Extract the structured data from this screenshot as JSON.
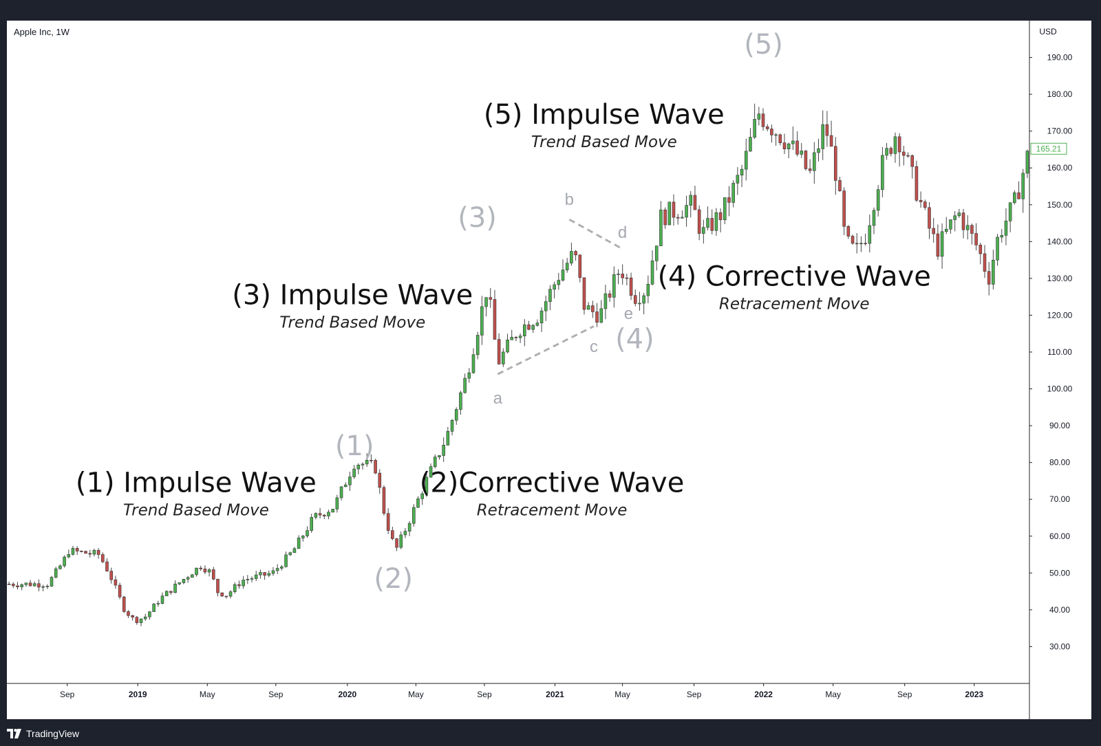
{
  "app": {
    "symbol_title": "Apple Inc, 1W",
    "brand": "TradingView"
  },
  "colors": {
    "background": "#1e222d",
    "panel": "#ffffff",
    "up": "#4caf50",
    "down": "#c0504d",
    "wick": "#444444",
    "wave_label": "#b2b5bc",
    "trendline": "#b0b0b0",
    "price_tag": "#4caf50"
  },
  "chart_data": {
    "type": "candlestick",
    "title": "Apple Inc, 1W",
    "currency": "USD",
    "ylim": [
      20,
      200
    ],
    "y_ticks": [
      30,
      40,
      50,
      60,
      70,
      80,
      90,
      100,
      110,
      120,
      130,
      140,
      150,
      160,
      170,
      180,
      190
    ],
    "y_tick_labels": [
      "30.00",
      "40.00",
      "50.00",
      "60.00",
      "70.00",
      "80.00",
      "90.00",
      "100.00",
      "110.00",
      "120.00",
      "130.00",
      "140.00",
      "150.00",
      "160.00",
      "170.00",
      "180.00",
      "190.00"
    ],
    "last_price": 165.21,
    "last_price_label": "165.21",
    "x_ticks": [
      {
        "label": "Sep",
        "t": 0.059,
        "bold": false
      },
      {
        "label": "2019",
        "t": 0.128,
        "bold": true
      },
      {
        "label": "May",
        "t": 0.196,
        "bold": false
      },
      {
        "label": "Sep",
        "t": 0.263,
        "bold": false
      },
      {
        "label": "2020",
        "t": 0.333,
        "bold": true
      },
      {
        "label": "May",
        "t": 0.4,
        "bold": false
      },
      {
        "label": "Sep",
        "t": 0.467,
        "bold": false
      },
      {
        "label": "2021",
        "t": 0.536,
        "bold": true
      },
      {
        "label": "May",
        "t": 0.602,
        "bold": false
      },
      {
        "label": "Sep",
        "t": 0.672,
        "bold": false
      },
      {
        "label": "2022",
        "t": 0.74,
        "bold": true
      },
      {
        "label": "May",
        "t": 0.808,
        "bold": false
      },
      {
        "label": "Sep",
        "t": 0.878,
        "bold": false
      },
      {
        "label": "2023",
        "t": 0.946,
        "bold": true
      }
    ],
    "price_path": [
      [
        0,
        47
      ],
      [
        0.04,
        47
      ],
      [
        0.055,
        53
      ],
      [
        0.06,
        56
      ],
      [
        0.09,
        55
      ],
      [
        0.1,
        50
      ],
      [
        0.115,
        40
      ],
      [
        0.125,
        37
      ],
      [
        0.135,
        38
      ],
      [
        0.15,
        43
      ],
      [
        0.18,
        50
      ],
      [
        0.19,
        52
      ],
      [
        0.2,
        50
      ],
      [
        0.205,
        45
      ],
      [
        0.215,
        44
      ],
      [
        0.23,
        48
      ],
      [
        0.26,
        50
      ],
      [
        0.28,
        56
      ],
      [
        0.3,
        65
      ],
      [
        0.32,
        68
      ],
      [
        0.34,
        80
      ],
      [
        0.36,
        79
      ],
      [
        0.37,
        65
      ],
      [
        0.38,
        56
      ],
      [
        0.39,
        62
      ],
      [
        0.41,
        75
      ],
      [
        0.43,
        87
      ],
      [
        0.45,
        104
      ],
      [
        0.47,
        128
      ],
      [
        0.48,
        107
      ],
      [
        0.5,
        116
      ],
      [
        0.52,
        120
      ],
      [
        0.54,
        131
      ],
      [
        0.555,
        137
      ],
      [
        0.565,
        122
      ],
      [
        0.58,
        120
      ],
      [
        0.6,
        133
      ],
      [
        0.615,
        125
      ],
      [
        0.625,
        127
      ],
      [
        0.64,
        147
      ],
      [
        0.67,
        150
      ],
      [
        0.68,
        142
      ],
      [
        0.7,
        148
      ],
      [
        0.72,
        160
      ],
      [
        0.735,
        175
      ],
      [
        0.745,
        172
      ],
      [
        0.76,
        168
      ],
      [
        0.775,
        163
      ],
      [
        0.785,
        158
      ],
      [
        0.8,
        172
      ],
      [
        0.81,
        160
      ],
      [
        0.82,
        140
      ],
      [
        0.83,
        137
      ],
      [
        0.84,
        142
      ],
      [
        0.855,
        160
      ],
      [
        0.87,
        170
      ],
      [
        0.88,
        162
      ],
      [
        0.9,
        145
      ],
      [
        0.91,
        138
      ],
      [
        0.93,
        148
      ],
      [
        0.95,
        138
      ],
      [
        0.96,
        130
      ],
      [
        0.97,
        142
      ],
      [
        0.985,
        150
      ],
      [
        1.0,
        165
      ]
    ],
    "wave_labels": [
      {
        "label": "(1)",
        "t": 0.34,
        "price": 82
      },
      {
        "label": "(2)",
        "t": 0.378,
        "price": 46
      },
      {
        "label": "(3)",
        "t": 0.46,
        "price": 144
      },
      {
        "label": "(4)",
        "t": 0.614,
        "price": 111
      },
      {
        "label": "(5)",
        "t": 0.74,
        "price": 191
      }
    ],
    "sub_wave_labels": [
      {
        "label": "a",
        "t": 0.48,
        "price": 96
      },
      {
        "label": "b",
        "t": 0.55,
        "price": 150
      },
      {
        "label": "c",
        "t": 0.574,
        "price": 110
      },
      {
        "label": "d",
        "t": 0.602,
        "price": 141
      },
      {
        "label": "e",
        "t": 0.608,
        "price": 119
      }
    ],
    "triangle_lines": [
      {
        "from": {
          "t": 0.48,
          "price": 104
        },
        "to": {
          "t": 0.574,
          "price": 117
        }
      },
      {
        "from": {
          "t": 0.55,
          "price": 146
        },
        "to": {
          "t": 0.602,
          "price": 138
        }
      }
    ],
    "annotations": [
      {
        "title": "(1) Impulse Wave",
        "subtitle": "Trend Based Move",
        "t": 0.185,
        "price": 72
      },
      {
        "title": "(2)Corrective Wave",
        "subtitle": "Retracement Move",
        "t": 0.533,
        "price": 72
      },
      {
        "title": "(3) Impulse Wave",
        "subtitle": "Trend Based Move",
        "t": 0.338,
        "price": 123
      },
      {
        "title": "(4) Corrective Wave",
        "subtitle": "Retracement Move",
        "t": 0.77,
        "price": 128
      },
      {
        "title": "(5) Impulse Wave",
        "subtitle": "Trend Based Move",
        "t": 0.584,
        "price": 172
      }
    ]
  }
}
